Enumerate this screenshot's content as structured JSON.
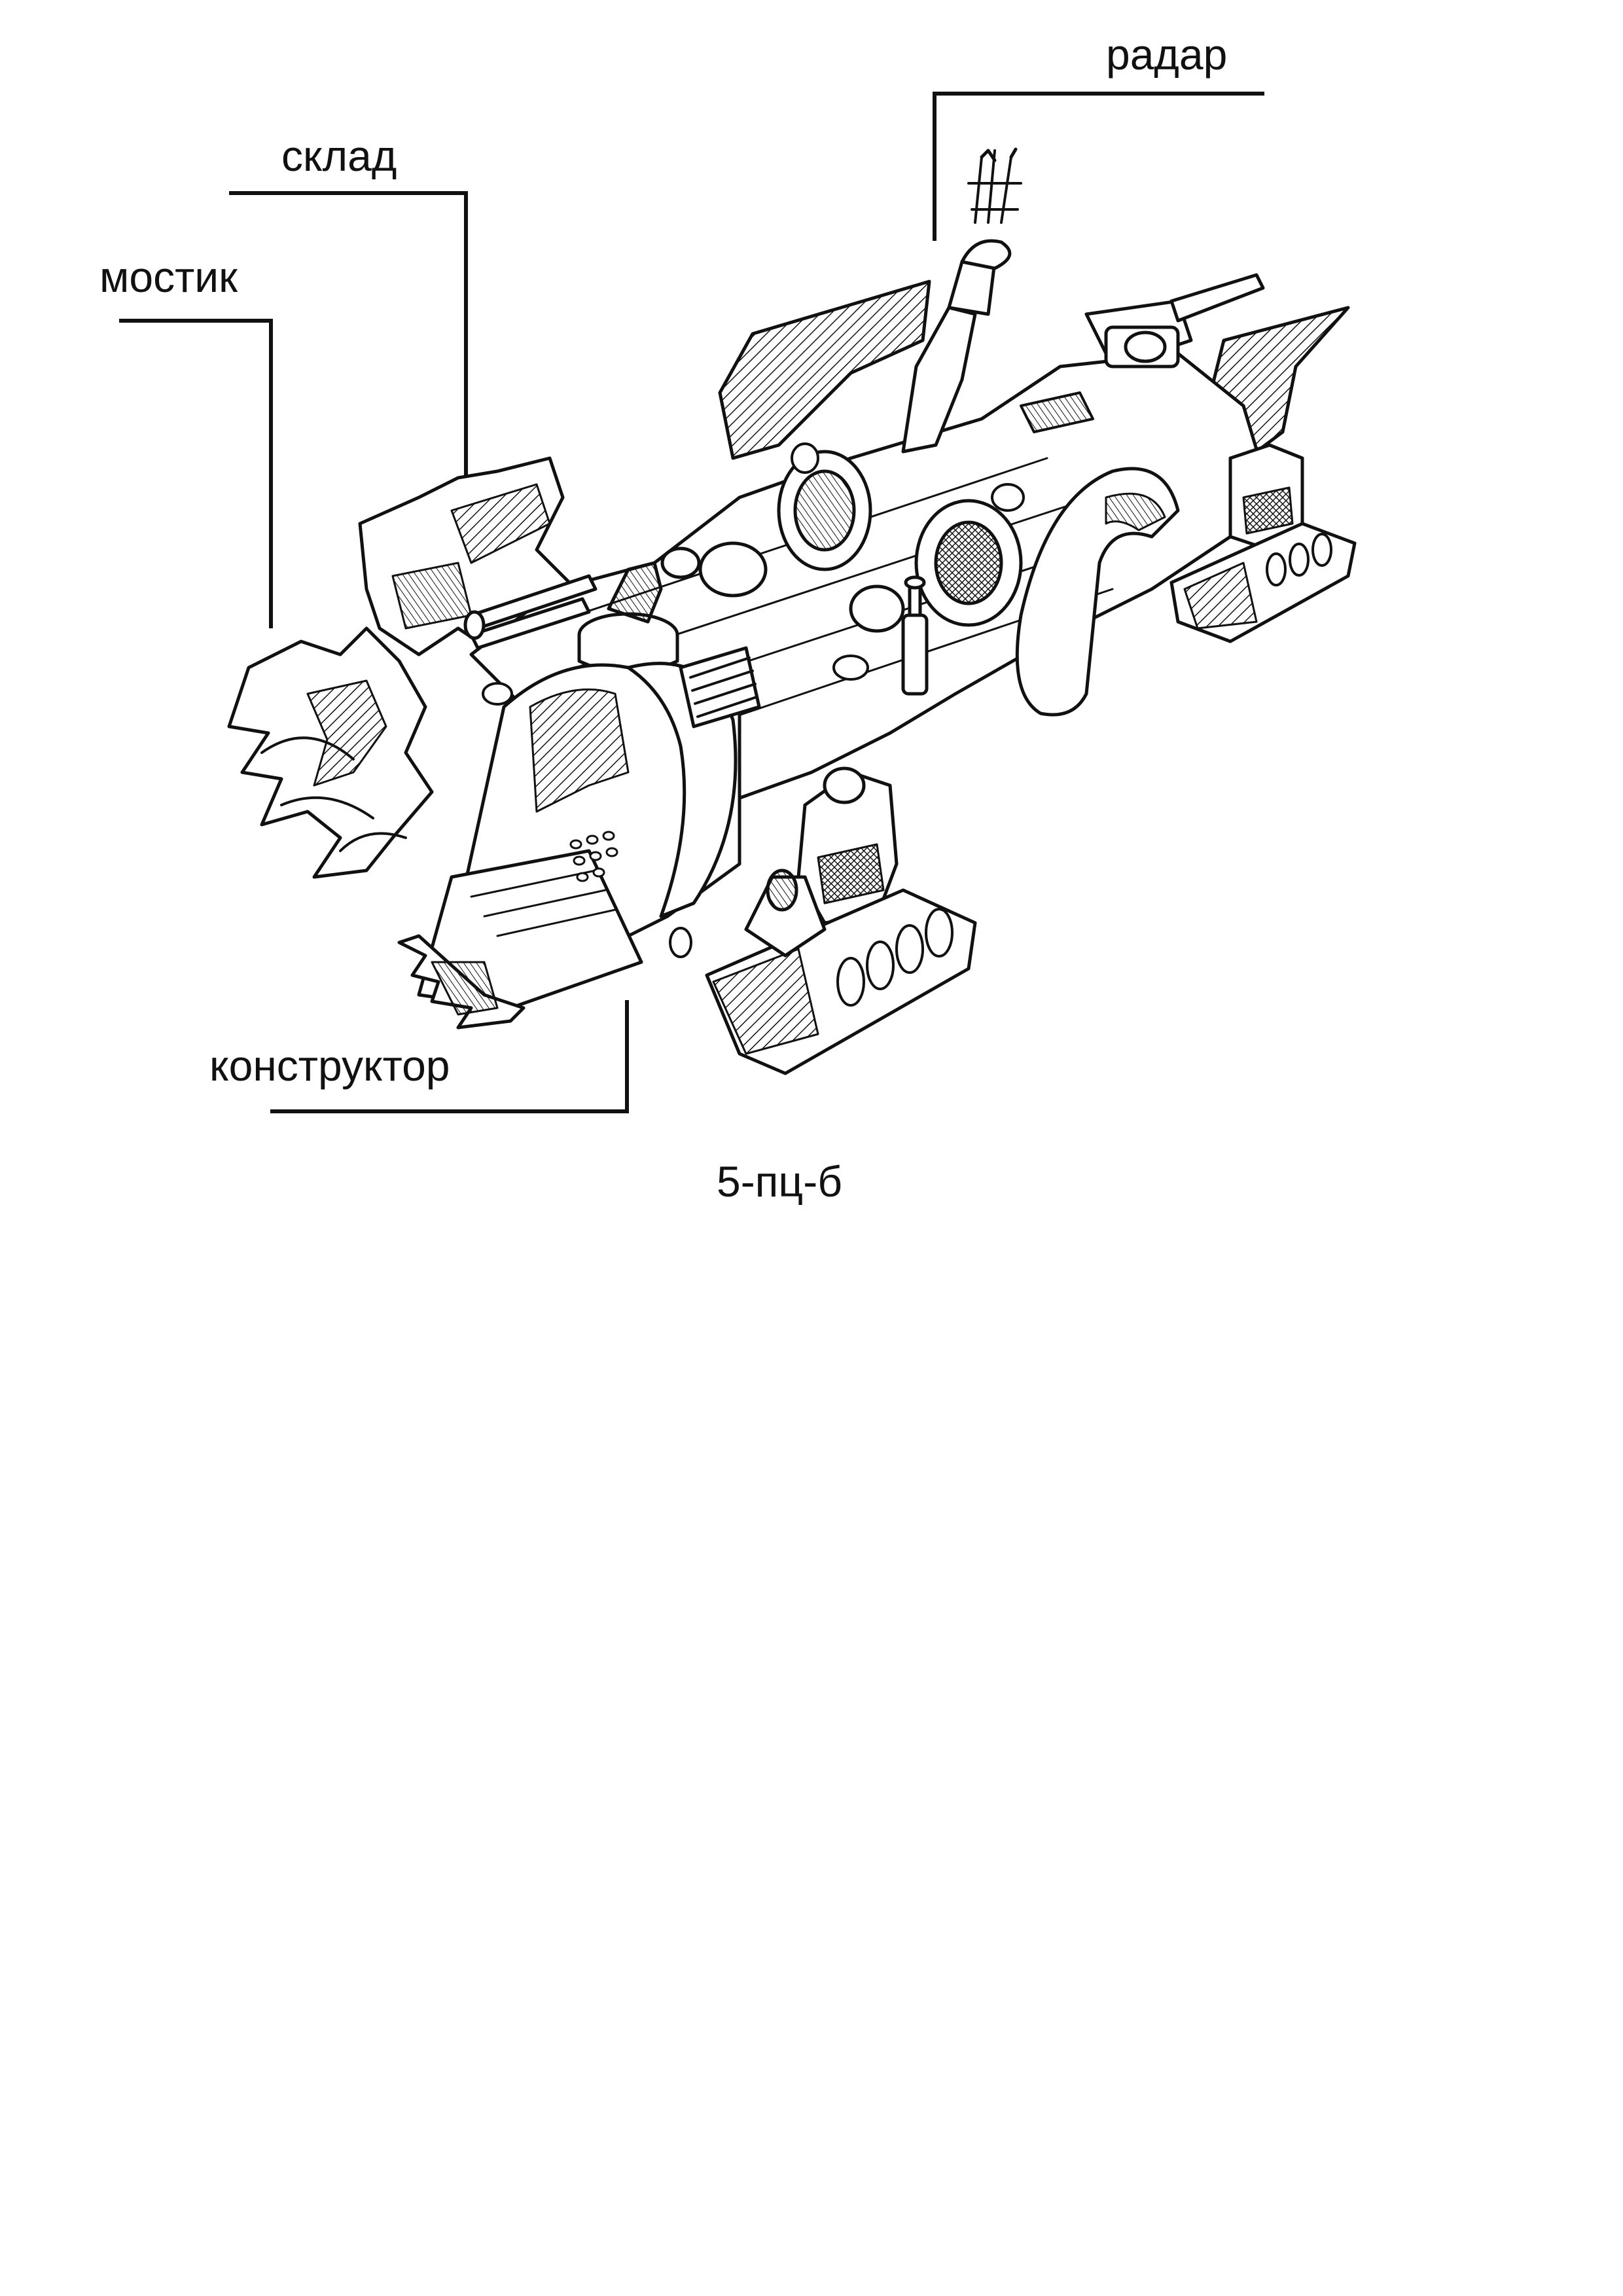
{
  "labels": {
    "radar": "радар",
    "sklad": "склад",
    "mostik": "мостик",
    "konstruktor": "конструктор"
  },
  "caption": "5-пц-б",
  "colors": {
    "ink": "#111111",
    "paper": "#ffffff"
  }
}
